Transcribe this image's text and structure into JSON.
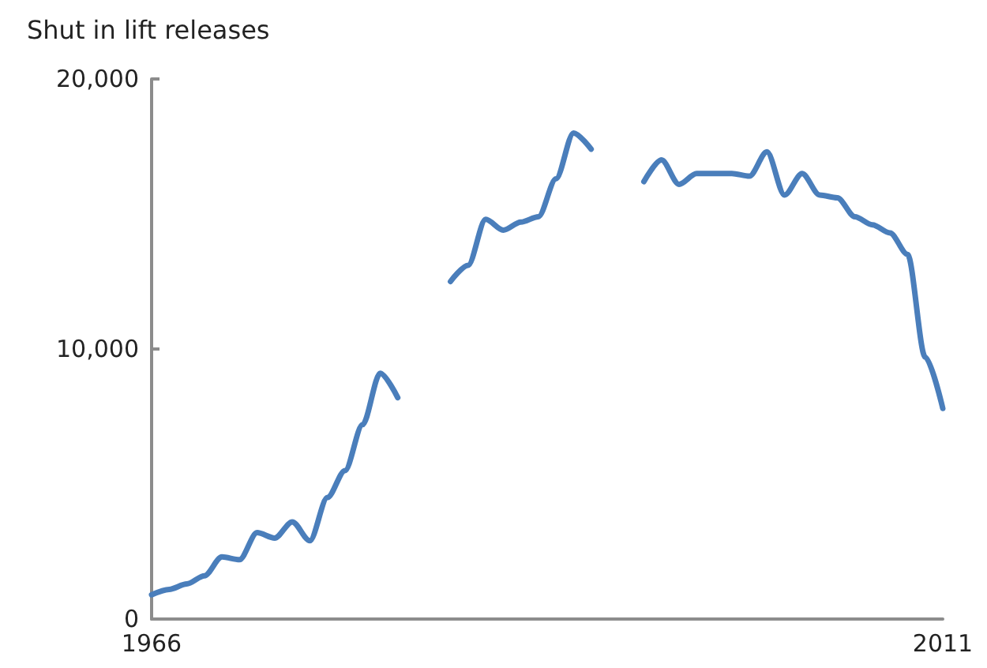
{
  "chart_data": {
    "type": "line",
    "ylabel": "Shut in lift releases",
    "x": [
      1966,
      1967,
      1968,
      1969,
      1970,
      1971,
      1972,
      1973,
      1974,
      1975,
      1976,
      1977,
      1978,
      1979,
      1980,
      1981,
      1982,
      1983,
      1984,
      1985,
      1986,
      1987,
      1988,
      1989,
      1990,
      1991,
      1992,
      1993,
      1994,
      1995,
      1996,
      1997,
      1998,
      1999,
      2000,
      2001,
      2002,
      2003,
      2004,
      2005,
      2006,
      2007,
      2008,
      2009,
      2010,
      2011
    ],
    "series": [
      {
        "color": "#4a7ebb",
        "values": [
          900,
          1100,
          1300,
          1600,
          2300,
          2200,
          3200,
          3000,
          3600,
          2900,
          4500,
          5500,
          7200,
          9100,
          8200,
          null,
          null,
          12500,
          13100,
          14800,
          14400,
          14700,
          14900,
          16300,
          18000,
          17400,
          null,
          null,
          16200,
          17000,
          16100,
          16500,
          16500,
          16500,
          16400,
          17300,
          15700,
          16500,
          15700,
          15600,
          14900,
          14600,
          14300,
          13500,
          9700,
          7800
        ]
      }
    ],
    "xlim": [
      1966,
      2011
    ],
    "xticks": [
      1966,
      2011
    ],
    "ylim": [
      0,
      20000
    ],
    "yticks": [
      0,
      {
        "value": 10000,
        "label": "10,000"
      },
      {
        "value": 20000,
        "label": "20,000"
      }
    ],
    "grid": false,
    "marker": "none",
    "line_style": "solid"
  }
}
